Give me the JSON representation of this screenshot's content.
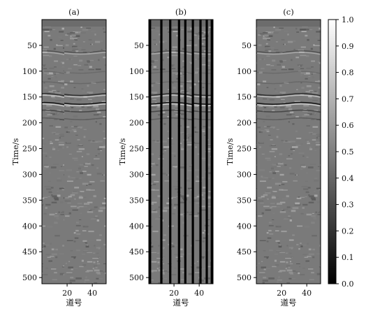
{
  "chart_data": {
    "type": "heatmap",
    "panels": [
      {
        "label": "(a)",
        "ylabel": "Time/s",
        "xlabel": "道号",
        "missing_traces": []
      },
      {
        "label": "(b)",
        "ylabel": "Time/s",
        "xlabel": "道号",
        "missing_traces": [
          1,
          10,
          17,
          24,
          29,
          35,
          41,
          46,
          50
        ]
      },
      {
        "label": "(c)",
        "ylabel": "Time/s",
        "xlabel": "道号",
        "missing_traces": []
      }
    ],
    "x_ticks": [
      "20",
      "40"
    ],
    "x_tick_values": [
      20,
      40
    ],
    "xlim": [
      0,
      51
    ],
    "y_ticks": [
      "50",
      "100",
      "150",
      "200",
      "250",
      "300",
      "350",
      "400",
      "450",
      "500"
    ],
    "y_tick_values": [
      50,
      100,
      150,
      200,
      250,
      300,
      350,
      400,
      450,
      500
    ],
    "ylim": [
      0,
      512
    ],
    "colormap": "gray",
    "colorbar": {
      "range": [
        0.0,
        1.0
      ],
      "ticks": [
        "0.0",
        "0.1",
        "0.2",
        "0.3",
        "0.4",
        "0.5",
        "0.6",
        "0.7",
        "0.8",
        "0.9",
        "1.0"
      ],
      "tick_values": [
        0.0,
        0.1,
        0.2,
        0.3,
        0.4,
        0.5,
        0.6,
        0.7,
        0.8,
        0.9,
        1.0
      ]
    }
  }
}
